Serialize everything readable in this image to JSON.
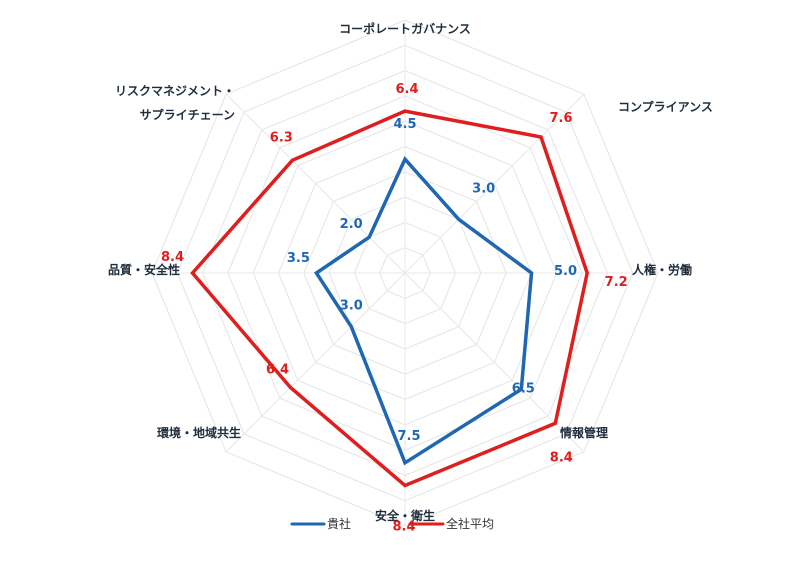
{
  "chart_data": {
    "type": "radar",
    "categories": [
      "コーポレートガバナンス",
      "コンプライアンス",
      "人権・労働",
      "情報管理",
      "安全・衛生",
      "環境・地域共生",
      "品質・安全性",
      "リスクマネジメント・サプライチェーン"
    ],
    "category_display": [
      [
        "コーポレートガバナンス"
      ],
      [
        "コンプライアンス"
      ],
      [
        "人権・労働"
      ],
      [
        "情報管理"
      ],
      [
        "安全・衛生"
      ],
      [
        "環境・地域共生"
      ],
      [
        "品質・安全性"
      ],
      [
        "リスクマネジメント・",
        "サプライチェーン"
      ]
    ],
    "series": [
      {
        "name": "貴社",
        "color": "#1f66b3",
        "values": [
          4.5,
          3.0,
          5.0,
          6.5,
          7.5,
          3.0,
          3.5,
          2.0
        ],
        "labels": [
          "4.5",
          "3.0",
          "5.0",
          "6.5",
          "7.5",
          "3.0",
          "3.5",
          "2.0"
        ]
      },
      {
        "name": "全社平均",
        "color": "#e01e1e",
        "values": [
          6.4,
          7.6,
          7.2,
          8.4,
          8.4,
          6.4,
          8.4,
          6.3
        ],
        "labels": [
          "6.4",
          "7.6",
          "7.2",
          "8.4",
          "8.4",
          "6.4",
          "8.4",
          "6.3"
        ]
      }
    ],
    "rlim": [
      0,
      10
    ],
    "grid": true,
    "legend_position": "bottom"
  }
}
